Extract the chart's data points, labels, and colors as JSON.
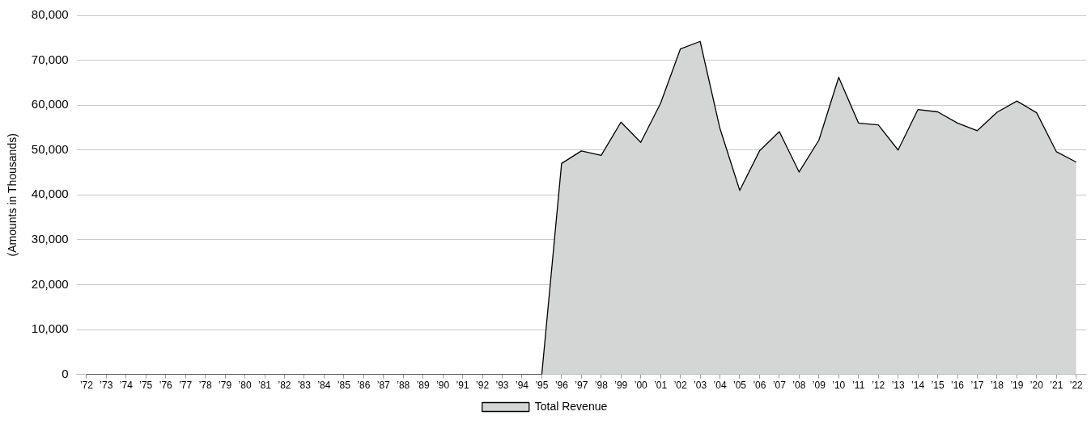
{
  "chart_data": {
    "type": "area",
    "ylabel": "(Amounts in Thousands)",
    "categories": [
      "’72",
      "’73",
      "’74",
      "’75",
      "’76",
      "’77",
      "’78",
      "’79",
      "’80",
      "’81",
      "’82",
      "’83",
      "’84",
      "’85",
      "’86",
      "’87",
      "’88",
      "’89",
      "’90",
      "’91",
      "’92",
      "’93",
      "’94",
      "’95",
      "’96",
      "’97",
      "’98",
      "’99",
      "’00",
      "’01",
      "’02",
      "’03",
      "’04",
      "’05",
      "’06",
      "’07",
      "’08",
      "’09",
      "’10",
      "’11",
      "’12",
      "’13",
      "’14",
      "’15",
      "’16",
      "’17",
      "’18",
      "’19",
      "’20",
      "’21",
      "’22"
    ],
    "series": [
      {
        "name": "Total Revenue",
        "color": "#d4d6d6",
        "values": [
          0,
          0,
          0,
          0,
          0,
          0,
          0,
          0,
          0,
          0,
          0,
          0,
          0,
          0,
          0,
          0,
          0,
          0,
          0,
          0,
          0,
          0,
          0,
          0,
          47000,
          49800,
          48800,
          56200,
          51700,
          60400,
          72500,
          74200,
          54800,
          41000,
          49800,
          54100,
          45100,
          52200,
          66200,
          56000,
          55600,
          50000,
          59000,
          58500,
          56000,
          54300,
          58400,
          60900,
          58300,
          49600,
          47300
        ]
      }
    ],
    "ylim": [
      0,
      80000
    ],
    "yticks": [
      0,
      {
        "value": 10000,
        "label": "10,000"
      },
      {
        "value": 20000,
        "label": "20,000"
      },
      {
        "value": 30000,
        "label": "30,000"
      },
      {
        "value": 40000,
        "label": "40,000"
      },
      {
        "value": 50000,
        "label": "50,000"
      },
      {
        "value": 60000,
        "label": "60,000"
      },
      {
        "value": 70000,
        "label": "70,000"
      },
      {
        "value": 80000,
        "label": "80,000"
      }
    ],
    "grid": "y",
    "legend": "bottom",
    "marker": "none",
    "line_style": "solid"
  }
}
